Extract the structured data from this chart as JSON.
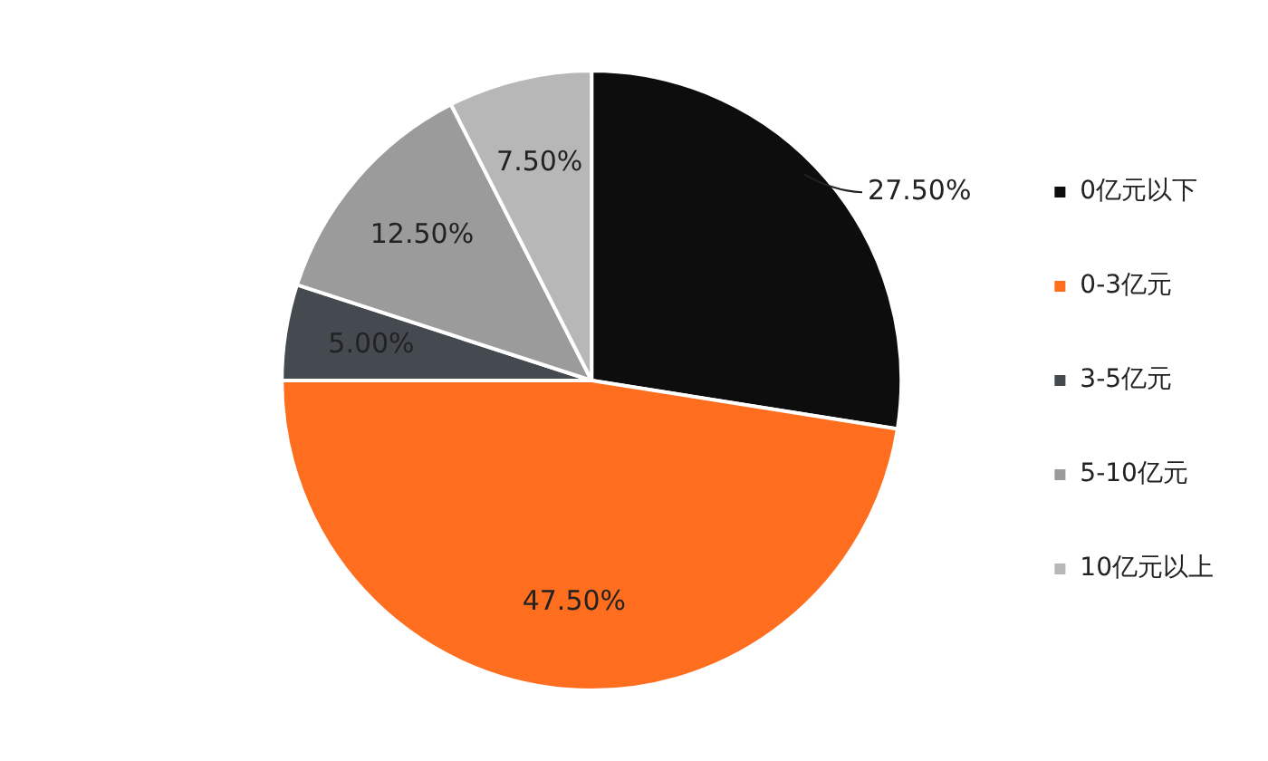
{
  "chart_data": {
    "type": "pie",
    "categories": [
      "0亿元以下",
      "0-3亿元",
      "3-5亿元",
      "5-10亿元",
      "10亿元以上"
    ],
    "values": [
      27.5,
      47.5,
      5,
      12.5,
      7.5
    ],
    "value_labels": [
      "27.50%",
      "47.50%",
      "5.00%",
      "12.50%",
      "7.50%"
    ],
    "colors": [
      "#0d0d0d",
      "#ff6d1f",
      "#454a50",
      "#9b9b9b",
      "#b7b7b7"
    ],
    "legend": "right"
  }
}
